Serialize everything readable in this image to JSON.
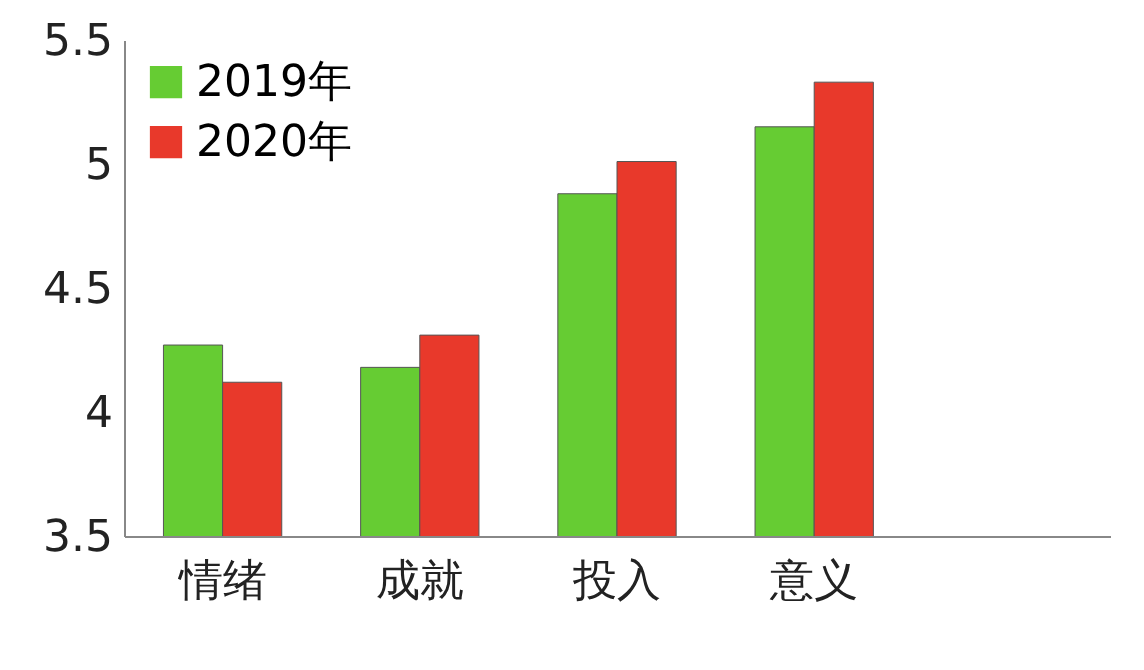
{
  "chart_data": {
    "type": "bar",
    "categories": [
      "情绪",
      "成就",
      "投入",
      "意义",
      null
    ],
    "series": [
      {
        "name": "2019年",
        "color": "#66cc33",
        "values": [
          4.27,
          4.18,
          4.88,
          5.15,
          null
        ]
      },
      {
        "name": "2020年",
        "color": "#e8392b",
        "values": [
          4.12,
          4.31,
          5.01,
          5.33,
          null
        ]
      }
    ],
    "ylim": [
      3.5,
      5.5
    ],
    "yticks": [
      3.5,
      4,
      4.5,
      5,
      5.5
    ],
    "grid": false,
    "legend": "top left"
  }
}
